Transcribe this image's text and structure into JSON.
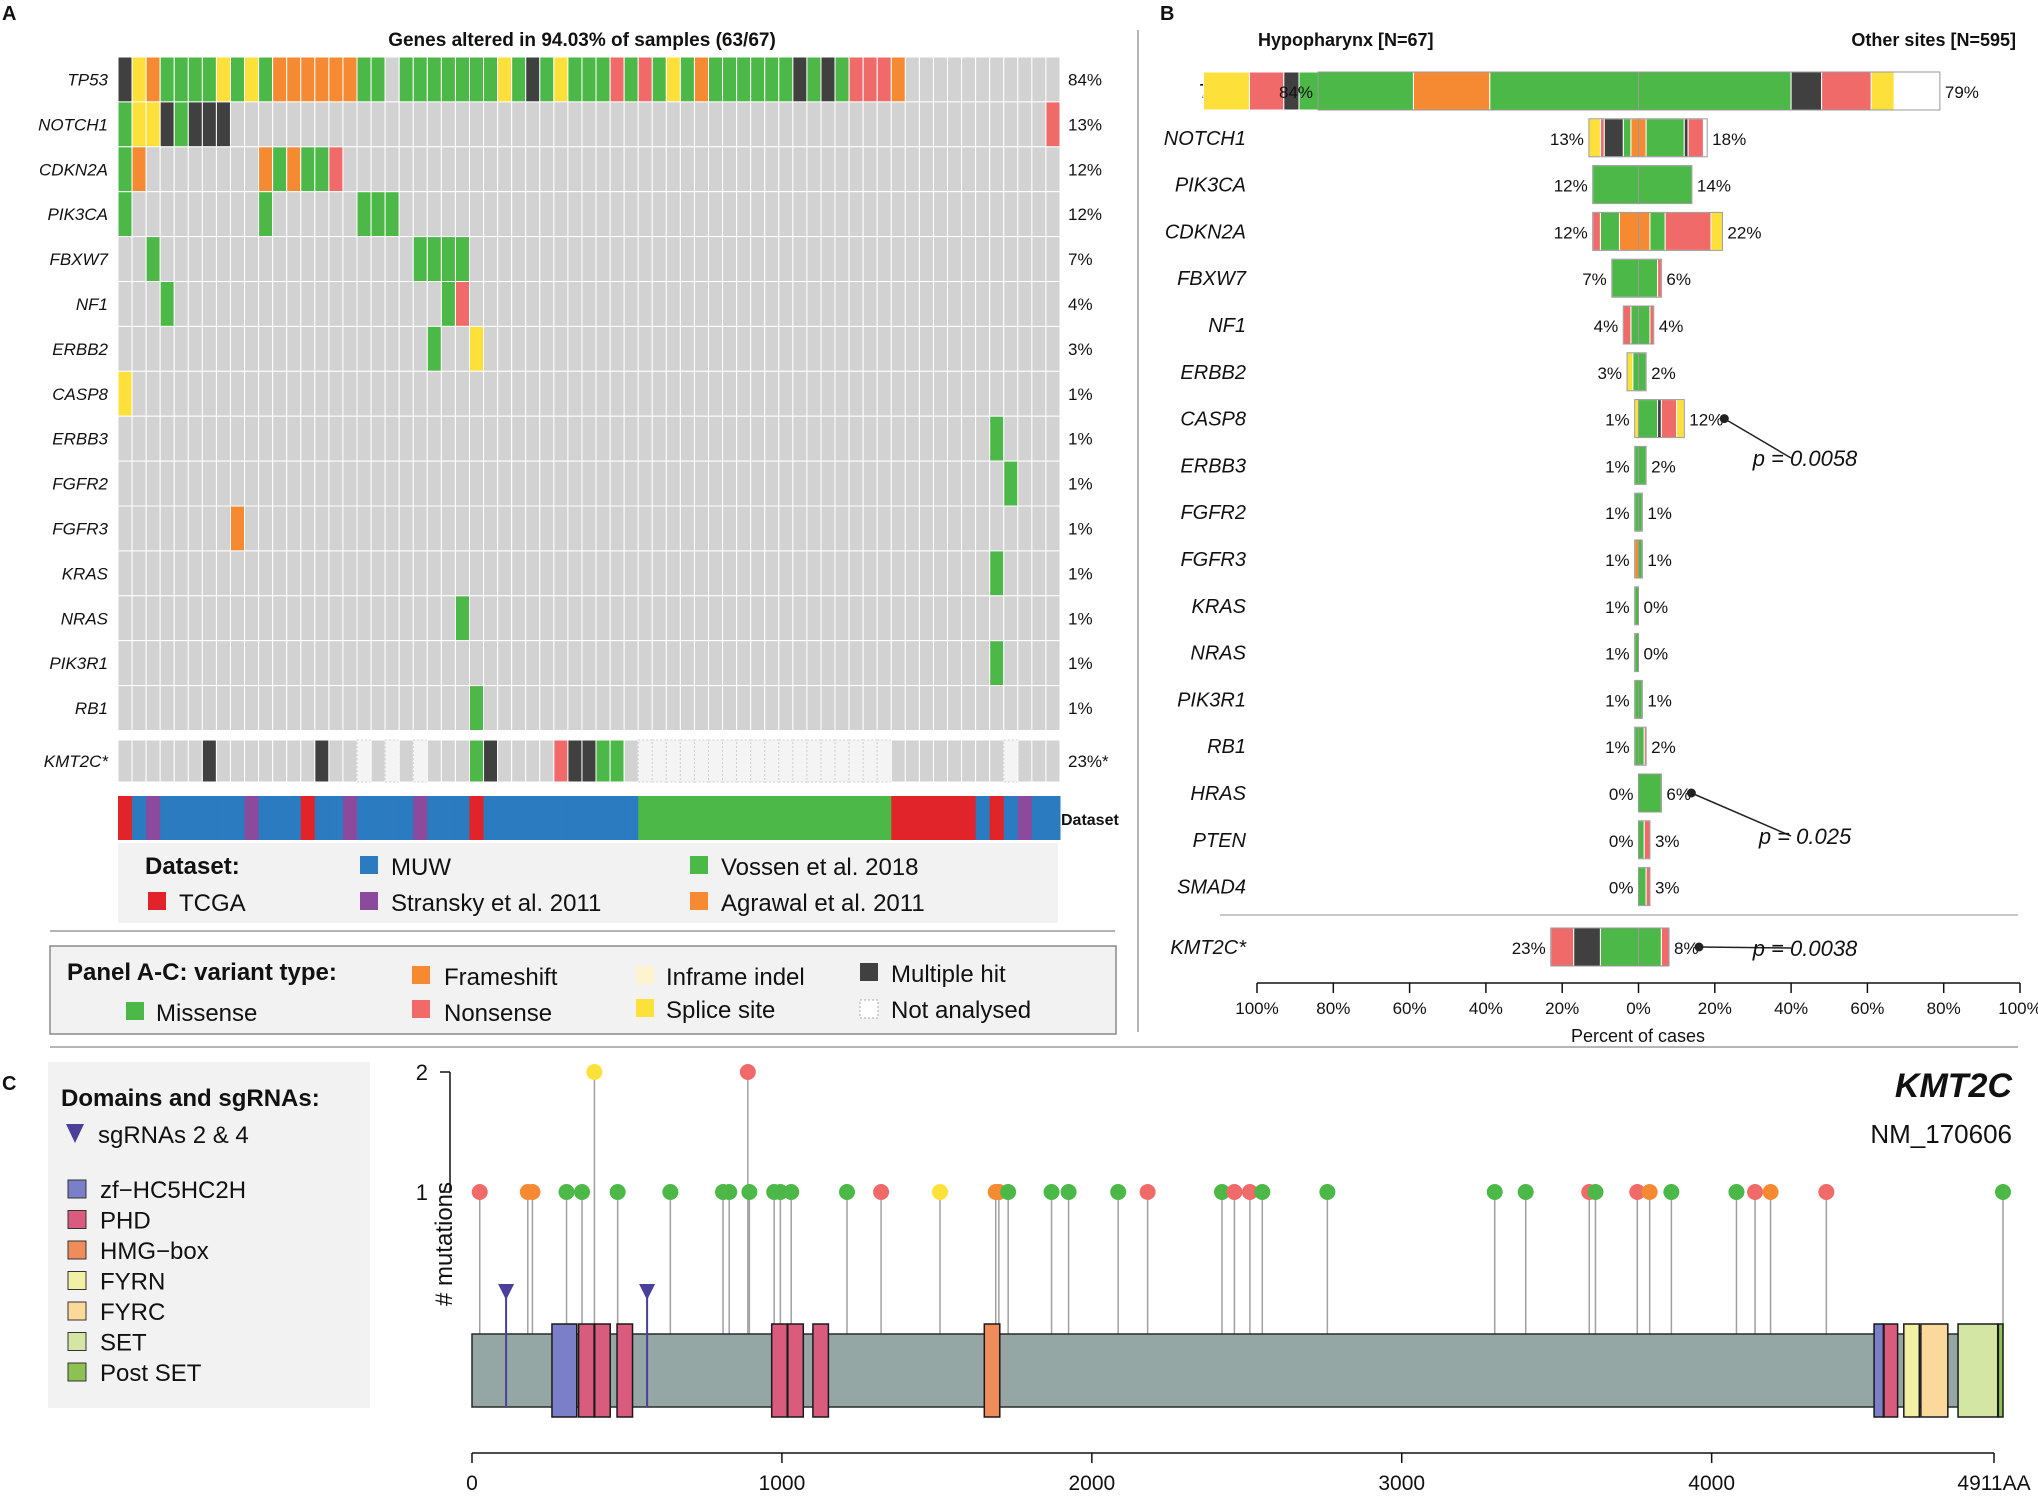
{
  "panel_letters": {
    "a": "A",
    "b": "B",
    "c": "C"
  },
  "colors": {
    "missense": "#4cb848",
    "frameshift": "#f58a32",
    "nonsense": "#f06a6a",
    "splice": "#fde03a",
    "multi": "#404040",
    "inframe": "#fdf3cf",
    "notanalysed": "#f4f4f4",
    "wt": "#d2d2d2",
    "muw": "#2b7bc0",
    "tcga": "#e0242a",
    "stransky": "#8b4a9c",
    "vossen": "#4cb848",
    "agrawal": "#f58a32"
  },
  "chart_data": [
    {
      "type": "heatmap",
      "title": "Genes altered in 94.03% of samples (63/67)",
      "n_samples": 67,
      "genes": [
        {
          "name": "TP53",
          "pct": "84%"
        },
        {
          "name": "NOTCH1",
          "pct": "13%"
        },
        {
          "name": "CDKN2A",
          "pct": "12%"
        },
        {
          "name": "PIK3CA",
          "pct": "12%"
        },
        {
          "name": "FBXW7",
          "pct": "7%"
        },
        {
          "name": "NF1",
          "pct": "4%"
        },
        {
          "name": "ERBB2",
          "pct": "3%"
        },
        {
          "name": "CASP8",
          "pct": "1%"
        },
        {
          "name": "ERBB3",
          "pct": "1%"
        },
        {
          "name": "FGFR2",
          "pct": "1%"
        },
        {
          "name": "FGFR3",
          "pct": "1%"
        },
        {
          "name": "KRAS",
          "pct": "1%"
        },
        {
          "name": "NRAS",
          "pct": "1%"
        },
        {
          "name": "PIK3R1",
          "pct": "1%"
        },
        {
          "name": "RB1",
          "pct": "1%"
        }
      ],
      "rows": [
        "XSFMMMMSMSMFFFFFFMM.MMMMMMMSMXMSMMMNMNMSMFMMMMMMXMXMNNNF............",
        "MSSXMXXX..........................................................N..",
        "MF........FMFMMN...................................................",
        "M.........M......MMM...............................................MMM",
        "..M..................MMMM..........................................",
        "...M...................MN..........................................",
        "......................M..S.........................................",
        "S..................................................................",
        "..............................................................M....",
        "...............................................................M...",
        "........F..........................................................",
        "..............................................................M....",
        "........................M..........................................",
        "..............................................................M....",
        ".........................M.........................................."
      ],
      "kmt2c": {
        "name": "KMT2C*",
        "pct": "23%*",
        "row": "......X.......X..........MX....NXXMM.....................................NM"
      },
      "dataset_label": "Dataset",
      "dataset_row": "TMSMMMMMMSMMMTMMSMMMMSMMMTMMMMMMMMMMMVVVVVVVVVVVVVVVVVVTTTTTTMTMSMM",
      "dataset_legend": {
        "title": "Dataset:",
        "items": [
          {
            "key": "muw",
            "label": "MUW"
          },
          {
            "key": "vossen",
            "label": "Vossen et al. 2018"
          },
          {
            "key": "tcga",
            "label": "TCGA"
          },
          {
            "key": "stransky",
            "label": "Stransky et al. 2011"
          },
          {
            "key": "agrawal",
            "label": "Agrawal et al. 2011"
          }
        ]
      },
      "variant_legend": {
        "title": "Panel A-C: variant type:",
        "items": [
          {
            "key": "frameshift",
            "label": "Frameshift"
          },
          {
            "key": "inframe",
            "label": "Inframe indel"
          },
          {
            "key": "multi",
            "label": "Multiple hit"
          },
          {
            "key": "missense",
            "label": "Missense"
          },
          {
            "key": "nonsense",
            "label": "Nonsense"
          },
          {
            "key": "splice",
            "label": "Splice site"
          },
          {
            "key": "notanalysed",
            "label": "Not analysed"
          }
        ]
      }
    },
    {
      "type": "bar",
      "subtype": "mirrored-stacked",
      "left_title": "Hypopharynx [N=67]",
      "right_title": "Other sites [N=595]",
      "xlabel": "Percent of cases",
      "xticks": [
        "100%",
        "80%",
        "60%",
        "40%",
        "20%",
        "0%",
        "20%",
        "40%",
        "60%",
        "80%",
        "100%"
      ],
      "xlim": [
        -100,
        100
      ],
      "genes": [
        {
          "name": "TP53",
          "left": 84,
          "right": 79,
          "left_label": "84%",
          "right_label": "79%",
          "left_seg": [
            [
              "missense",
              39
            ],
            [
              "frameshift",
              20
            ],
            [
              "missense",
              30
            ],
            [
              "multi",
              4
            ],
            [
              "nonsense",
              9
            ],
            [
              "splice",
              12
            ]
          ],
          "right_seg": [
            [
              "missense",
              40
            ],
            [
              "multi",
              8
            ],
            [
              "nonsense",
              13
            ],
            [
              "splice",
              6
            ]
          ]
        },
        {
          "name": "NOTCH1",
          "left": 13,
          "right": 18,
          "left_label": "13%",
          "right_label": "18%",
          "left_seg": [
            [
              "frameshift",
              2
            ],
            [
              "missense",
              2
            ],
            [
              "multi",
              5
            ],
            [
              "nonsense",
              1
            ],
            [
              "splice",
              3
            ]
          ],
          "right_seg": [
            [
              "frameshift",
              2
            ],
            [
              "missense",
              10
            ],
            [
              "multi",
              1
            ],
            [
              "nonsense",
              4
            ]
          ]
        },
        {
          "name": "PIK3CA",
          "left": 12,
          "right": 14,
          "left_label": "12%",
          "right_label": "14%",
          "left_seg": [
            [
              "missense",
              12
            ]
          ],
          "right_seg": [
            [
              "missense",
              14
            ]
          ]
        },
        {
          "name": "CDKN2A",
          "left": 12,
          "right": 22,
          "left_label": "12%",
          "right_label": "22%",
          "left_seg": [
            [
              "frameshift",
              5
            ],
            [
              "missense",
              5
            ],
            [
              "nonsense",
              2
            ]
          ],
          "right_seg": [
            [
              "frameshift",
              3
            ],
            [
              "missense",
              4
            ],
            [
              "nonsense",
              12
            ],
            [
              "splice",
              3
            ]
          ]
        },
        {
          "name": "FBXW7",
          "left": 7,
          "right": 6,
          "left_label": "7%",
          "right_label": "6%",
          "left_seg": [
            [
              "missense",
              7
            ]
          ],
          "right_seg": [
            [
              "missense",
              5
            ],
            [
              "nonsense",
              1
            ]
          ]
        },
        {
          "name": "NF1",
          "left": 4,
          "right": 4,
          "left_label": "4%",
          "right_label": "4%",
          "left_seg": [
            [
              "missense",
              2
            ],
            [
              "nonsense",
              2
            ]
          ],
          "right_seg": [
            [
              "missense",
              3
            ],
            [
              "nonsense",
              1
            ]
          ]
        },
        {
          "name": "ERBB2",
          "left": 3,
          "right": 2,
          "left_label": "3%",
          "right_label": "2%",
          "left_seg": [
            [
              "missense",
              1.5
            ],
            [
              "splice",
              1.5
            ]
          ],
          "right_seg": [
            [
              "missense",
              2
            ]
          ]
        },
        {
          "name": "CASP8",
          "left": 1,
          "right": 12,
          "left_label": "1%",
          "right_label": "12%",
          "left_seg": [
            [
              "splice",
              1
            ]
          ],
          "right_seg": [
            [
              "missense",
              5
            ],
            [
              "multi",
              1
            ],
            [
              "nonsense",
              4
            ],
            [
              "splice",
              2
            ]
          ]
        },
        {
          "name": "ERBB3",
          "left": 1,
          "right": 2,
          "left_label": "1%",
          "right_label": "2%",
          "left_seg": [
            [
              "missense",
              1
            ]
          ],
          "right_seg": [
            [
              "missense",
              2
            ]
          ]
        },
        {
          "name": "FGFR2",
          "left": 1,
          "right": 1,
          "left_label": "1%",
          "right_label": "1%",
          "left_seg": [
            [
              "missense",
              1
            ]
          ],
          "right_seg": [
            [
              "missense",
              1
            ]
          ]
        },
        {
          "name": "FGFR3",
          "left": 1,
          "right": 1,
          "left_label": "1%",
          "right_label": "1%",
          "left_seg": [
            [
              "frameshift",
              1
            ]
          ],
          "right_seg": [
            [
              "missense",
              1
            ]
          ]
        },
        {
          "name": "KRAS",
          "left": 1,
          "right": 0,
          "left_label": "1%",
          "right_label": "0%",
          "left_seg": [
            [
              "missense",
              1
            ]
          ],
          "right_seg": []
        },
        {
          "name": "NRAS",
          "left": 1,
          "right": 0,
          "left_label": "1%",
          "right_label": "0%",
          "left_seg": [
            [
              "missense",
              1
            ]
          ],
          "right_seg": []
        },
        {
          "name": "PIK3R1",
          "left": 1,
          "right": 1,
          "left_label": "1%",
          "right_label": "1%",
          "left_seg": [
            [
              "missense",
              1
            ]
          ],
          "right_seg": [
            [
              "missense",
              1
            ]
          ]
        },
        {
          "name": "RB1",
          "left": 1,
          "right": 2,
          "left_label": "1%",
          "right_label": "2%",
          "left_seg": [
            [
              "missense",
              1
            ]
          ],
          "right_seg": [
            [
              "missense",
              1.5
            ],
            [
              "nonsense",
              0.5
            ]
          ]
        },
        {
          "name": "HRAS",
          "left": 0,
          "right": 6,
          "left_label": "0%",
          "right_label": "6%",
          "left_seg": [],
          "right_seg": [
            [
              "missense",
              6
            ]
          ]
        },
        {
          "name": "PTEN",
          "left": 0,
          "right": 3,
          "left_label": "0%",
          "right_label": "3%",
          "left_seg": [],
          "right_seg": [
            [
              "missense",
              1.5
            ],
            [
              "nonsense",
              1.5
            ]
          ]
        },
        {
          "name": "SMAD4",
          "left": 0,
          "right": 3,
          "left_label": "0%",
          "right_label": "3%",
          "left_seg": [],
          "right_seg": [
            [
              "missense",
              2
            ],
            [
              "nonsense",
              1
            ]
          ]
        },
        {
          "name": "KMT2C*",
          "left": 23,
          "right": 8,
          "left_label": "23%",
          "right_label": "8%",
          "left_seg": [
            [
              "missense",
              10
            ],
            [
              "multi",
              7
            ],
            [
              "nonsense",
              6
            ]
          ],
          "right_seg": [
            [
              "missense",
              6
            ],
            [
              "nonsense",
              2
            ]
          ]
        }
      ],
      "pvalues": [
        {
          "gene": "CASP8",
          "label": "p = 0.0058"
        },
        {
          "gene": "HRAS",
          "label": "p = 0.025"
        },
        {
          "gene": "KMT2C*",
          "label": "p = 0.0038"
        }
      ]
    },
    {
      "type": "scatter",
      "subtype": "lollipop",
      "gene": "KMT2C",
      "transcript": "NM_170606",
      "ylabel": "# mutations",
      "yticks": [
        "1",
        "2"
      ],
      "xticks": [
        "0",
        "1000",
        "2000",
        "3000",
        "4000"
      ],
      "x_end_label": "4911AA",
      "xlim": [
        0,
        4911
      ],
      "mutations": [
        [
          25,
          1,
          "nonsense"
        ],
        [
          180,
          1,
          "frameshift"
        ],
        [
          195,
          1,
          "frameshift"
        ],
        [
          305,
          1,
          "missense"
        ],
        [
          355,
          1,
          "missense"
        ],
        [
          395,
          2,
          "splice"
        ],
        [
          470,
          1,
          "missense"
        ],
        [
          640,
          1,
          "missense"
        ],
        [
          810,
          1,
          "missense"
        ],
        [
          830,
          1,
          "missense"
        ],
        [
          890,
          2,
          "nonsense"
        ],
        [
          895,
          1,
          "missense"
        ],
        [
          975,
          1,
          "missense"
        ],
        [
          995,
          1,
          "missense"
        ],
        [
          1030,
          1,
          "missense"
        ],
        [
          1210,
          1,
          "missense"
        ],
        [
          1320,
          1,
          "nonsense"
        ],
        [
          1510,
          1,
          "splice"
        ],
        [
          1690,
          1,
          "frameshift"
        ],
        [
          1700,
          1,
          "frameshift"
        ],
        [
          1730,
          1,
          "missense"
        ],
        [
          1870,
          1,
          "missense"
        ],
        [
          1925,
          1,
          "missense"
        ],
        [
          2085,
          1,
          "missense"
        ],
        [
          2180,
          1,
          "nonsense"
        ],
        [
          2420,
          1,
          "missense"
        ],
        [
          2460,
          1,
          "nonsense"
        ],
        [
          2510,
          1,
          "nonsense"
        ],
        [
          2550,
          1,
          "missense"
        ],
        [
          2760,
          1,
          "missense"
        ],
        [
          3300,
          1,
          "missense"
        ],
        [
          3400,
          1,
          "missense"
        ],
        [
          3605,
          1,
          "nonsense"
        ],
        [
          3625,
          1,
          "missense"
        ],
        [
          3760,
          1,
          "nonsense"
        ],
        [
          3800,
          1,
          "frameshift"
        ],
        [
          3870,
          1,
          "missense"
        ],
        [
          4080,
          1,
          "missense"
        ],
        [
          4140,
          1,
          "nonsense"
        ],
        [
          4190,
          1,
          "frameshift"
        ],
        [
          4370,
          1,
          "nonsense"
        ],
        [
          4940,
          1,
          "missense"
        ]
      ],
      "sgrna_positions": [
        110,
        565
      ],
      "domains": [
        {
          "type": "zf",
          "start": 258,
          "end": 338
        },
        {
          "type": "phd",
          "start": 344,
          "end": 394
        },
        {
          "type": "phd",
          "start": 396,
          "end": 446
        },
        {
          "type": "phd",
          "start": 468,
          "end": 518
        },
        {
          "type": "phd",
          "start": 967,
          "end": 1017
        },
        {
          "type": "phd",
          "start": 1019,
          "end": 1069
        },
        {
          "type": "phd",
          "start": 1100,
          "end": 1150
        },
        {
          "type": "hmg",
          "start": 1653,
          "end": 1703
        },
        {
          "type": "zf",
          "start": 4524,
          "end": 4554
        },
        {
          "type": "phd",
          "start": 4556,
          "end": 4600
        },
        {
          "type": "fyrn",
          "start": 4620,
          "end": 4670
        },
        {
          "type": "fyrc",
          "start": 4675,
          "end": 4762
        },
        {
          "type": "set",
          "start": 4795,
          "end": 4923
        },
        {
          "type": "post",
          "start": 4925,
          "end": 4940
        }
      ],
      "domain_colors": {
        "zf": "#7b7fc8",
        "phd": "#d95c7f",
        "hmg": "#f08c5a",
        "fyrn": "#f2f0a6",
        "fyrc": "#fbd99b",
        "set": "#d3e6a4",
        "post": "#8cc253"
      },
      "legend": {
        "title": "Domains and sgRNAs:",
        "sgrna_label": "sgRNAs 2 & 4",
        "items": [
          {
            "key": "zf",
            "label": "zf−HC5HC2H"
          },
          {
            "key": "phd",
            "label": "PHD"
          },
          {
            "key": "hmg",
            "label": "HMG−box"
          },
          {
            "key": "fyrn",
            "label": "FYRN"
          },
          {
            "key": "fyrc",
            "label": "FYRC"
          },
          {
            "key": "set",
            "label": "SET"
          },
          {
            "key": "post",
            "label": "Post SET"
          }
        ]
      }
    }
  ]
}
